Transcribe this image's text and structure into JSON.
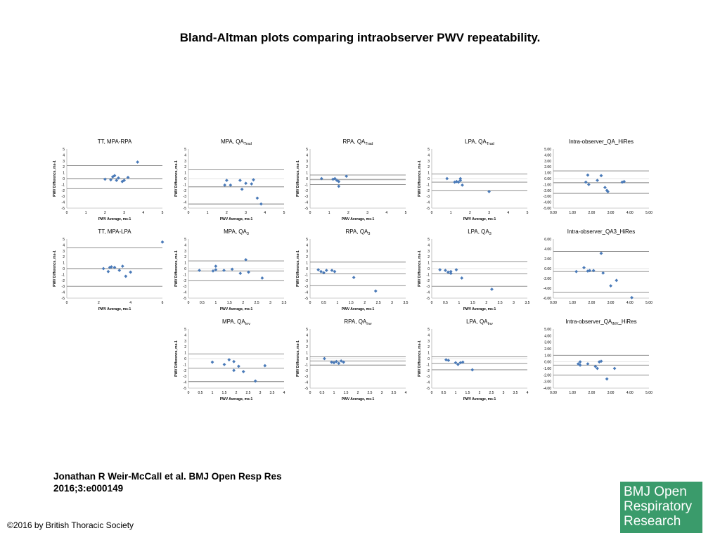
{
  "title": "Bland-Altman plots comparing intraobserver PWV repeatability.",
  "citation": {
    "line1": "Jonathan R Weir-McCall et al. BMJ Open Resp Res",
    "line2": "2016;3:e000149"
  },
  "copyright": "©2016 by British Thoracic Society",
  "logo": {
    "lines": [
      "BMJ Open",
      "Respiratory",
      "Research"
    ],
    "background": "#3a9b6b"
  },
  "colors": {
    "marker": "#4a7ab8",
    "line": "#808080",
    "axis": "#999999"
  },
  "chart_data": [
    {
      "type": "scatter",
      "title": "TT, MPA-RPA",
      "title_sub": "",
      "xlabel": "PWV Average, ms-1",
      "ylabel": "PWV Difference, ms-1",
      "xlim": [
        0,
        5
      ],
      "ylim": [
        -5,
        5
      ],
      "xticks": [
        "0",
        "1",
        "2",
        "3",
        "4",
        "5"
      ],
      "yticks": [
        "5",
        "4",
        "3",
        "2",
        "1",
        "0",
        "-1",
        "-2",
        "-3",
        "-4",
        "-5"
      ],
      "hlines": [
        2.2,
        0,
        -1.7
      ],
      "points": [
        [
          2,
          -0.1
        ],
        [
          2.3,
          -0.2
        ],
        [
          2.4,
          0.3
        ],
        [
          2.5,
          0.5
        ],
        [
          2.6,
          -0.3
        ],
        [
          2.7,
          0.1
        ],
        [
          2.9,
          -0.5
        ],
        [
          3,
          -0.3
        ],
        [
          3.2,
          0.2
        ],
        [
          3.7,
          2.8
        ]
      ]
    },
    {
      "type": "scatter",
      "title": "MPA, QA",
      "title_sub": "Trad",
      "xlabel": "PWV Average, ms-1",
      "ylabel": "PWV Difference, ms-1",
      "xlim": [
        0,
        5
      ],
      "ylim": [
        -5,
        5
      ],
      "xticks": [
        "0",
        "1",
        "2",
        "3",
        "4",
        "5"
      ],
      "yticks": [
        "5",
        "4",
        "3",
        "2",
        "1",
        "0",
        "-1",
        "-2",
        "-3",
        "-4",
        "-5"
      ],
      "hlines": [
        1.5,
        -1.4,
        -4.3
      ],
      "points": [
        [
          1.9,
          -1.1
        ],
        [
          2,
          -0.3
        ],
        [
          2.2,
          -1.1
        ],
        [
          2.7,
          -0.3
        ],
        [
          2.8,
          -1.8
        ],
        [
          3,
          -0.8
        ],
        [
          3.3,
          -0.9
        ],
        [
          3.4,
          -0.2
        ],
        [
          3.6,
          -3.3
        ],
        [
          3.8,
          -4.3
        ]
      ]
    },
    {
      "type": "scatter",
      "title": "RPA, QA",
      "title_sub": "Trad",
      "xlabel": "PWV Average, ms-1",
      "ylabel": "PWV Difference, ms-1",
      "xlim": [
        0,
        5
      ],
      "ylim": [
        -5,
        5
      ],
      "xticks": [
        "0",
        "1",
        "2",
        "3",
        "4",
        "5"
      ],
      "yticks": [
        "5",
        "4",
        "3",
        "2",
        "1",
        "0",
        "-1",
        "-2",
        "-3",
        "-4",
        "-5"
      ],
      "hlines": [
        0.6,
        -0.2,
        -1
      ],
      "points": [
        [
          0.6,
          0
        ],
        [
          1.2,
          -0.1
        ],
        [
          1.3,
          0
        ],
        [
          1.4,
          -0.3
        ],
        [
          1.5,
          -0.5
        ],
        [
          1.5,
          -1.3
        ],
        [
          1.9,
          0.4
        ]
      ]
    },
    {
      "type": "scatter",
      "title": "LPA, QA",
      "title_sub": "Trad",
      "xlabel": "PWV Average, ms-1",
      "ylabel": "PWV Difference, ms-1",
      "xlim": [
        0,
        5
      ],
      "ylim": [
        -5,
        5
      ],
      "xticks": [
        "0",
        "1",
        "2",
        "3",
        "4",
        "5"
      ],
      "yticks": [
        "5",
        "4",
        "3",
        "2",
        "1",
        "0",
        "-1",
        "-2",
        "-3",
        "-4",
        "-5"
      ],
      "hlines": [
        0.8,
        -0.6,
        -2
      ],
      "points": [
        [
          0.8,
          0
        ],
        [
          1.2,
          -0.6
        ],
        [
          1.3,
          -0.5
        ],
        [
          1.4,
          -0.6
        ],
        [
          1.5,
          0
        ],
        [
          1.5,
          -0.3
        ],
        [
          1.6,
          -1.1
        ],
        [
          3,
          -2.2
        ]
      ]
    },
    {
      "type": "scatter",
      "title": "Intra-observer_QA_HiRes",
      "title_sub": "",
      "xlabel": "",
      "ylabel": "",
      "xlim": [
        0,
        5
      ],
      "ylim": [
        -5,
        5
      ],
      "xticks": [
        "0.00",
        "1.00",
        "2.00",
        "3.00",
        "4.00",
        "5.00"
      ],
      "yticks": [
        "5.00",
        "4.00",
        "3.00",
        "2.00",
        "1.00",
        "0.00",
        "-1.00",
        "-2.00",
        "-3.00",
        "-4.00",
        "-5.00"
      ],
      "hlines": [
        1.3,
        -0.7,
        -2.5
      ],
      "points": [
        [
          1.7,
          -0.6
        ],
        [
          1.8,
          0.6
        ],
        [
          1.85,
          -1
        ],
        [
          2.3,
          -0.3
        ],
        [
          2.5,
          0.5
        ],
        [
          2.7,
          -1.5
        ],
        [
          2.8,
          -2
        ],
        [
          2.85,
          -2.2
        ],
        [
          3.6,
          -0.6
        ],
        [
          3.7,
          -0.5
        ]
      ]
    },
    {
      "type": "scatter",
      "title": "TT, MPA-LPA",
      "title_sub": "",
      "xlabel": "PWV Average, ms-1",
      "ylabel": "PWV Difference, ms-1",
      "xlim": [
        0,
        6
      ],
      "ylim": [
        -5,
        5
      ],
      "xticks": [
        "0",
        "2",
        "4",
        "6"
      ],
      "yticks": [
        "5",
        "4",
        "3",
        "2",
        "1",
        "0",
        "-1",
        "-2",
        "-3",
        "-4",
        "-5"
      ],
      "hlines": [
        3.5,
        0,
        -3
      ],
      "points": [
        [
          2.3,
          0
        ],
        [
          2.6,
          -0.5
        ],
        [
          2.7,
          0.2
        ],
        [
          2.8,
          0.3
        ],
        [
          3,
          0.2
        ],
        [
          3.3,
          -0.3
        ],
        [
          3.5,
          0.4
        ],
        [
          3.7,
          -1.3
        ],
        [
          4,
          -0.6
        ],
        [
          6,
          4.5
        ]
      ]
    },
    {
      "type": "scatter",
      "title": "MPA, QA",
      "title_sub": "3",
      "xlabel": "PWV Average, ms-1",
      "ylabel": "PWV Difference, ms-1",
      "xlim": [
        0,
        3.5
      ],
      "ylim": [
        -5,
        5
      ],
      "xticks": [
        "0",
        "0.5",
        "1",
        "1.5",
        "2",
        "2.5",
        "3",
        "3.5"
      ],
      "yticks": [
        "5",
        "4",
        "3",
        "2",
        "1",
        "0",
        "-1",
        "-2",
        "-3",
        "-4",
        "-5"
      ],
      "hlines": [
        1.3,
        -0.4,
        -2
      ],
      "points": [
        [
          0.4,
          -0.3
        ],
        [
          0.9,
          -0.4
        ],
        [
          1,
          -0.2
        ],
        [
          1,
          0.4
        ],
        [
          1.3,
          -0.3
        ],
        [
          1.6,
          -0.1
        ],
        [
          1.9,
          -0.8
        ],
        [
          2.1,
          1.5
        ],
        [
          2.2,
          -0.6
        ],
        [
          2.7,
          -1.6
        ]
      ]
    },
    {
      "type": "scatter",
      "title": "RPA, QA",
      "title_sub": "3",
      "xlabel": "PWV Average, ms-1",
      "ylabel": "PWV Difference, ms-1",
      "xlim": [
        0,
        3.5
      ],
      "ylim": [
        -5,
        5
      ],
      "xticks": [
        "0",
        "0.5",
        "1",
        "1.5",
        "2",
        "2.5",
        "3",
        "3.5"
      ],
      "yticks": [
        "5",
        "4",
        "3",
        "2",
        "1",
        "0",
        "-1",
        "-2",
        "-3",
        "-4",
        "-5"
      ],
      "hlines": [
        1.1,
        -0.9,
        -2.9
      ],
      "points": [
        [
          0.3,
          -0.2
        ],
        [
          0.4,
          -0.5
        ],
        [
          0.5,
          -0.7
        ],
        [
          0.6,
          -0.3
        ],
        [
          0.8,
          -0.3
        ],
        [
          0.9,
          -0.5
        ],
        [
          1.6,
          -1.5
        ],
        [
          2.4,
          -3.8
        ]
      ]
    },
    {
      "type": "scatter",
      "title": "LPA, QA",
      "title_sub": "3",
      "xlabel": "PWV Average, ms-1",
      "ylabel": "PWV Difference, ms-1",
      "xlim": [
        0,
        3.5
      ],
      "ylim": [
        -5,
        5
      ],
      "xticks": [
        "0",
        "0.5",
        "1",
        "1.5",
        "2",
        "2.5",
        "3",
        "3.5"
      ],
      "yticks": [
        "5",
        "4",
        "3",
        "2",
        "1",
        "0",
        "-1",
        "-2",
        "-3",
        "-4",
        "-5"
      ],
      "hlines": [
        1.2,
        -0.9,
        -3
      ],
      "points": [
        [
          0.3,
          -0.2
        ],
        [
          0.5,
          -0.3
        ],
        [
          0.6,
          -0.6
        ],
        [
          0.7,
          -0.8
        ],
        [
          0.7,
          -0.5
        ],
        [
          0.9,
          -0.2
        ],
        [
          1.1,
          -1.6
        ],
        [
          2.2,
          -3.5
        ]
      ]
    },
    {
      "type": "scatter",
      "title": "Intra-observer_QA3_HiRes",
      "title_sub": "",
      "xlabel": "",
      "ylabel": "",
      "xlim": [
        0,
        5
      ],
      "ylim": [
        -6,
        6
      ],
      "xticks": [
        "0.00",
        "1.00",
        "2.00",
        "3.00",
        "4.00",
        "5.00"
      ],
      "yticks": [
        "6.00",
        "4.00",
        "2.00",
        "0.00",
        "-2.00",
        "-4.00",
        "-6.00"
      ],
      "hlines": [
        3.5,
        -0.6,
        -4.8
      ],
      "points": [
        [
          1.2,
          -0.6
        ],
        [
          1.6,
          0.2
        ],
        [
          1.8,
          -0.5
        ],
        [
          1.9,
          -0.4
        ],
        [
          2.1,
          -0.4
        ],
        [
          2.5,
          3.1
        ],
        [
          2.6,
          -0.9
        ],
        [
          3,
          -3.5
        ],
        [
          3.3,
          -2.4
        ],
        [
          4.1,
          -5.9
        ]
      ]
    },
    {
      "type": "scatter",
      "title": "MPA, QA",
      "title_sub": "Inv",
      "xlabel": "PWV Average, ms-1",
      "ylabel": "PWV Difference, ms-1",
      "xlim": [
        0,
        4
      ],
      "ylim": [
        -5,
        5
      ],
      "xticks": [
        "0",
        "0.5",
        "1",
        "1.5",
        "2",
        "2.5",
        "3",
        "3.5",
        "4"
      ],
      "yticks": [
        "5",
        "4",
        "3",
        "2",
        "1",
        "0",
        "-1",
        "-2",
        "-3",
        "-4",
        "-5"
      ],
      "hlines": [
        0.8,
        -1.6,
        -3.9
      ],
      "points": [
        [
          1,
          -0.6
        ],
        [
          1.5,
          -1
        ],
        [
          1.7,
          -0.2
        ],
        [
          1.9,
          -0.5
        ],
        [
          1.9,
          -2
        ],
        [
          2.1,
          -1.3
        ],
        [
          2.3,
          -2.2
        ],
        [
          2.8,
          -3.8
        ],
        [
          3.2,
          -1.2
        ]
      ]
    },
    {
      "type": "scatter",
      "title": "RPA, QA",
      "title_sub": "Inv",
      "xlabel": "PWV Average, ms-1",
      "ylabel": "PWV Difference, ms-1",
      "xlim": [
        0,
        4
      ],
      "ylim": [
        -5,
        5
      ],
      "xticks": [
        "0",
        "0.5",
        "1",
        "1.5",
        "2",
        "2.5",
        "3",
        "3.5",
        "4"
      ],
      "yticks": [
        "5",
        "4",
        "3",
        "2",
        "1",
        "0",
        "-1",
        "-2",
        "-3",
        "-4",
        "-5"
      ],
      "hlines": [
        0.3,
        -0.4,
        -1.1
      ],
      "points": [
        [
          0.6,
          0
        ],
        [
          0.9,
          -0.6
        ],
        [
          1,
          -0.7
        ],
        [
          1.1,
          -0.5
        ],
        [
          1.2,
          -0.8
        ],
        [
          1.3,
          -0.4
        ],
        [
          1.4,
          -0.6
        ]
      ]
    },
    {
      "type": "scatter",
      "title": "LPA, QA",
      "title_sub": "Inv",
      "xlabel": "PWV Average, ms-1",
      "ylabel": "PWV Difference, ms-1",
      "xlim": [
        0,
        4
      ],
      "ylim": [
        -5,
        5
      ],
      "xticks": [
        "0",
        "0.5",
        "1",
        "1.5",
        "2",
        "2.5",
        "3",
        "3.5",
        "4"
      ],
      "yticks": [
        "5",
        "4",
        "3",
        "2",
        "1",
        "0",
        "-1",
        "-2",
        "-3",
        "-4",
        "-5"
      ],
      "hlines": [
        0.3,
        -0.8,
        -1.9
      ],
      "points": [
        [
          0.6,
          -0.2
        ],
        [
          0.7,
          -0.3
        ],
        [
          1,
          -0.7
        ],
        [
          1.1,
          -1
        ],
        [
          1.2,
          -0.7
        ],
        [
          1.3,
          -0.6
        ],
        [
          1.7,
          -1.9
        ]
      ]
    },
    {
      "type": "scatter",
      "title": "Intra-observer_QA",
      "title_sub": "INV",
      "title_suffix": "_HiRes",
      "xlabel": "",
      "ylabel": "",
      "xlim": [
        0,
        5
      ],
      "ylim": [
        -4,
        5
      ],
      "xticks": [
        "0.00",
        "1.00",
        "2.00",
        "3.00",
        "4.00",
        "5.00"
      ],
      "yticks": [
        "5.00",
        "4.00",
        "3.00",
        "2.00",
        "1.00",
        "0.00",
        "-1.00",
        "-2.00",
        "-3.00",
        "-4.00"
      ],
      "hlines": [
        1,
        -0.5,
        -2
      ],
      "points": [
        [
          1.3,
          -0.3
        ],
        [
          1.4,
          0
        ],
        [
          1.4,
          -0.5
        ],
        [
          1.8,
          -0.3
        ],
        [
          2.2,
          -0.7
        ],
        [
          2.3,
          -1
        ],
        [
          2.4,
          0
        ],
        [
          2.5,
          0.1
        ],
        [
          2.8,
          -2.6
        ],
        [
          3.2,
          -1
        ]
      ]
    }
  ]
}
